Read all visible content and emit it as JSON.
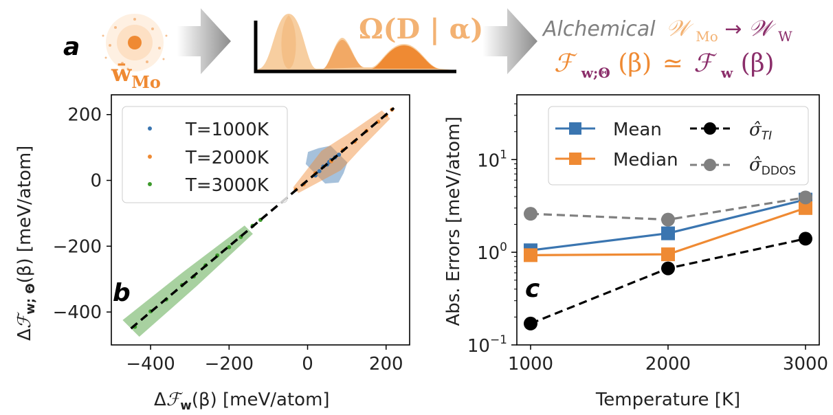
{
  "banner": {
    "panel_label": "a",
    "atom_label": "w̄",
    "atom_sub": "Mo",
    "omega_text": "Ω(D | α)",
    "alchemical_word": "Alchemical",
    "w_mo": "𝒲",
    "w_mo_sub": "Mo",
    "arrow": "→",
    "w_w": "𝒲",
    "w_w_sub": "W",
    "f_left": "ℱ",
    "f_left_sub": "w;Θ",
    "f_left_tail": "(β)",
    "approx": "≃",
    "f_right": "ℱ",
    "f_right_sub": "w",
    "f_right_tail": "(β)"
  },
  "colors": {
    "blue": "#3a75b0",
    "orange": "#ef8a33",
    "green": "#3d9a2c",
    "gray": "#808080",
    "black": "#000000",
    "purple": "#8b2e6a",
    "orange_light": "#f6c58f"
  },
  "chart_data": [
    {
      "type": "scatter",
      "panel_label": "b",
      "xlabel": "ΔℱW(β) [meV/atom]",
      "xlabel_parts": [
        "Δ",
        "ℱ",
        "w",
        "(β) [meV/atom]"
      ],
      "ylabel_parts": [
        "Δ",
        "ℱ",
        "w; Θ",
        "(β) [meV/atom]"
      ],
      "xlim": [
        -500,
        260
      ],
      "ylim": [
        -500,
        260
      ],
      "xticks": [
        -400,
        -200,
        0,
        200
      ],
      "xtick_labels": [
        "−400",
        "−200",
        "0",
        "200"
      ],
      "yticks": [
        -400,
        -200,
        0,
        200
      ],
      "ytick_labels": [
        "−400",
        "−200",
        "0",
        "200"
      ],
      "legend": {
        "placement": "top-left",
        "entries": [
          "T=1000K",
          "T=2000K",
          "T=3000K"
        ]
      },
      "series": [
        {
          "name": "T=1000K",
          "x": [
            20,
            30,
            40,
            50,
            55,
            60,
            70,
            80
          ],
          "y": [
            15,
            28,
            42,
            48,
            56,
            62,
            70,
            78
          ],
          "band": [
            [
              20,
              35
            ],
            [
              40,
              55
            ],
            [
              60,
              45
            ],
            [
              80,
              30
            ]
          ]
        },
        {
          "name": "T=2000K",
          "x": [
            -30,
            -10,
            20,
            60,
            90,
            120,
            150,
            180,
            200,
            215
          ],
          "y": [
            -28,
            -12,
            22,
            58,
            92,
            118,
            150,
            178,
            198,
            215
          ],
          "band": [
            [
              -30,
              10
            ],
            [
              60,
              35
            ],
            [
              120,
              25
            ],
            [
              200,
              15
            ]
          ]
        },
        {
          "name": "T=3000K",
          "x": [
            -440,
            -400,
            -360,
            -320,
            -290,
            -260,
            -230,
            -200,
            -170,
            -140,
            -120
          ],
          "y": [
            -445,
            -398,
            -362,
            -318,
            -292,
            -258,
            -228,
            -203,
            -172,
            -138,
            -120
          ],
          "band": [
            [
              -450,
              30
            ],
            [
              -300,
              25
            ],
            [
              -150,
              15
            ]
          ]
        }
      ],
      "fit_line": {
        "x": [
          -450,
          220
        ],
        "y": [
          -450,
          220
        ]
      }
    },
    {
      "type": "line",
      "panel_label": "c",
      "xlabel": "Temperature [K]",
      "ylabel": "Abs. Errors [meV/atom]",
      "yscale": "log",
      "xlim": [
        900,
        3100
      ],
      "ylim": [
        0.1,
        50
      ],
      "xticks": [
        1000,
        2000,
        3000
      ],
      "xtick_labels": [
        "1000",
        "2000",
        "3000"
      ],
      "yticks": [
        0.1,
        1,
        10
      ],
      "ytick_labels": [
        [
          "10",
          "−1"
        ],
        [
          "10",
          "0"
        ],
        [
          "10",
          "1"
        ]
      ],
      "x": [
        1000,
        2000,
        3000
      ],
      "legend": {
        "placement": "top-right",
        "entries": [
          "Mean",
          "Median",
          "σ̂TI",
          "σ̂DDOS"
        ]
      },
      "series": [
        {
          "name": "Mean",
          "values": [
            1.05,
            1.6,
            3.7
          ],
          "marker": "square",
          "style": "solid"
        },
        {
          "name": "Median",
          "values": [
            0.93,
            0.95,
            3.0
          ],
          "marker": "square",
          "style": "solid"
        },
        {
          "name": "σ̂TI",
          "label_main": "σ̂",
          "label_sub": "TI",
          "values": [
            0.17,
            0.67,
            1.4
          ],
          "marker": "circle",
          "style": "dashed"
        },
        {
          "name": "σ̂DDOS",
          "label_main": "σ̂",
          "label_sub": "DDOS",
          "values": [
            2.6,
            2.25,
            3.9
          ],
          "marker": "circle",
          "style": "dashed"
        }
      ]
    }
  ]
}
